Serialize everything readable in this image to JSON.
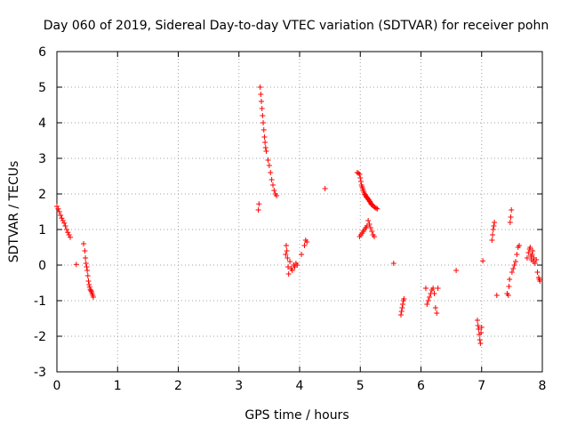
{
  "chart_data": {
    "type": "scatter",
    "title": "Day 060 of 2019, Sidereal Day-to-day VTEC variation (SDTVAR) for receiver pohn",
    "xlabel": "GPS time / hours",
    "ylabel": "SDTVAR / TECUs",
    "xlim": [
      0,
      8
    ],
    "ylim": [
      -3,
      6
    ],
    "xticks": [
      "0",
      "1",
      "2",
      "3",
      "4",
      "5",
      "6",
      "7",
      "8"
    ],
    "yticks": [
      "-3",
      "-2",
      "-1",
      "0",
      "1",
      "2",
      "3",
      "4",
      "5",
      "6"
    ],
    "grid": true,
    "marker": "+",
    "color": "#ff0000",
    "series": [
      {
        "name": "SDTVAR",
        "x": [
          0.0,
          0.02,
          0.04,
          0.06,
          0.08,
          0.1,
          0.12,
          0.14,
          0.16,
          0.18,
          0.2,
          0.22,
          0.32,
          0.44,
          0.46,
          0.47,
          0.48,
          0.49,
          0.5,
          0.51,
          0.52,
          0.53,
          0.54,
          0.55,
          0.56,
          0.57,
          0.58,
          0.59,
          0.6,
          3.32,
          3.33,
          3.35,
          3.36,
          3.37,
          3.38,
          3.39,
          3.4,
          3.41,
          3.42,
          3.43,
          3.44,
          3.45,
          3.48,
          3.5,
          3.52,
          3.54,
          3.56,
          3.58,
          3.6,
          3.62,
          3.77,
          3.78,
          3.79,
          3.8,
          3.81,
          3.82,
          3.84,
          3.86,
          3.88,
          3.9,
          3.92,
          3.94,
          3.96,
          4.03,
          4.08,
          4.1,
          4.12,
          4.42,
          4.95,
          4.97,
          4.99,
          5.0,
          5.01,
          5.02,
          5.03,
          5.04,
          5.05,
          5.06,
          5.07,
          5.08,
          5.09,
          5.1,
          5.11,
          5.12,
          5.13,
          5.14,
          5.15,
          5.16,
          5.17,
          5.18,
          5.19,
          5.2,
          5.22,
          5.24,
          5.26,
          5.28,
          4.99,
          5.01,
          5.03,
          5.05,
          5.07,
          5.09,
          5.11,
          5.13,
          5.15,
          5.17,
          5.19,
          5.21,
          5.23,
          5.55,
          5.67,
          5.68,
          5.69,
          5.7,
          5.71,
          5.72,
          6.08,
          6.1,
          6.12,
          6.14,
          6.16,
          6.18,
          6.2,
          6.22,
          6.24,
          6.26,
          6.28,
          6.58,
          6.93,
          6.94,
          6.95,
          6.96,
          6.97,
          6.98,
          6.99,
          7.0,
          7.02,
          7.17,
          7.18,
          7.19,
          7.2,
          7.21,
          7.25,
          7.42,
          7.44,
          7.45,
          7.46,
          7.47,
          7.48,
          7.49,
          7.5,
          7.52,
          7.54,
          7.56,
          7.58,
          7.6,
          7.62,
          7.75,
          7.77,
          7.79,
          7.8,
          7.81,
          7.82,
          7.83,
          7.84,
          7.85,
          7.86,
          7.88,
          7.9,
          7.92,
          7.94,
          7.95,
          7.96
        ],
        "y": [
          1.65,
          1.58,
          1.5,
          1.4,
          1.32,
          1.25,
          1.18,
          1.1,
          1.0,
          0.92,
          0.85,
          0.78,
          0.02,
          0.6,
          0.4,
          0.2,
          0.05,
          -0.05,
          -0.15,
          -0.3,
          -0.45,
          -0.55,
          -0.62,
          -0.68,
          -0.72,
          -0.75,
          -0.8,
          -0.85,
          -0.9,
          1.55,
          1.72,
          5.0,
          4.8,
          4.6,
          4.4,
          4.2,
          4.0,
          3.8,
          3.6,
          3.45,
          3.3,
          3.2,
          2.95,
          2.8,
          2.6,
          2.4,
          2.25,
          2.1,
          2.0,
          1.95,
          0.3,
          0.55,
          0.4,
          0.2,
          -0.05,
          -0.25,
          0.1,
          -0.1,
          -0.15,
          0.0,
          -0.05,
          0.05,
          0.0,
          0.3,
          0.55,
          0.7,
          0.65,
          2.15,
          2.6,
          2.58,
          2.55,
          2.45,
          2.35,
          2.25,
          2.2,
          2.15,
          2.1,
          2.05,
          2.0,
          1.98,
          1.95,
          1.92,
          1.9,
          1.88,
          1.85,
          1.83,
          1.8,
          1.78,
          1.75,
          1.72,
          1.7,
          1.68,
          1.65,
          1.62,
          1.6,
          1.58,
          0.8,
          0.85,
          0.9,
          0.95,
          1.0,
          1.05,
          1.1,
          1.25,
          1.15,
          1.05,
          0.95,
          0.85,
          0.8,
          0.05,
          -1.4,
          -1.3,
          -1.2,
          -1.1,
          -1.0,
          -0.95,
          -0.65,
          -1.1,
          -1.0,
          -0.9,
          -0.8,
          -0.7,
          -0.65,
          -0.8,
          -1.2,
          -1.35,
          -0.65,
          -0.15,
          -1.55,
          -1.7,
          -1.8,
          -1.95,
          -2.1,
          -2.2,
          -1.9,
          -1.75,
          0.12,
          0.7,
          0.85,
          1.0,
          1.1,
          1.2,
          -0.85,
          -0.8,
          -0.85,
          -0.6,
          -0.4,
          1.2,
          1.35,
          1.55,
          -0.2,
          -0.1,
          0.0,
          0.1,
          0.3,
          0.5,
          0.55,
          0.2,
          0.35,
          0.45,
          0.5,
          0.25,
          0.15,
          0.3,
          0.4,
          0.1,
          0.2,
          0.05,
          0.15,
          -0.2,
          -0.35,
          -0.4,
          -0.45
        ]
      }
    ]
  }
}
